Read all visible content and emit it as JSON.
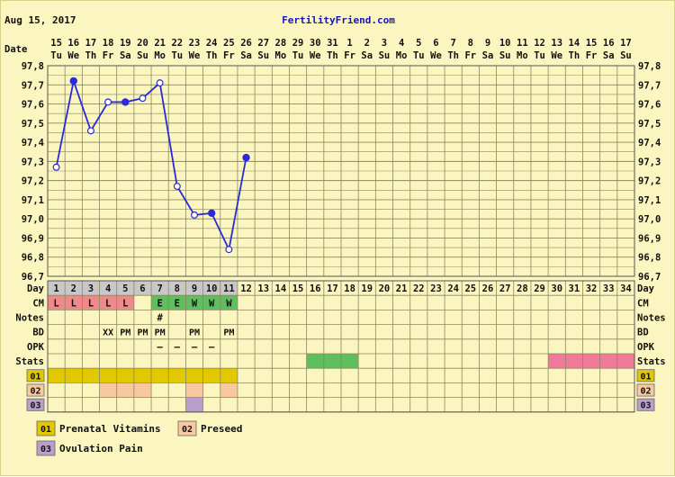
{
  "header": {
    "date": "Aug 15, 2017",
    "site": "FertilityFriend.com"
  },
  "row_labels": {
    "date": "Date",
    "day": "Day",
    "cm": "CM",
    "notes": "Notes",
    "bd": "BD",
    "opk": "OPK",
    "stats": "Stats"
  },
  "chart_data": {
    "type": "line",
    "dates": [
      "15",
      "16",
      "17",
      "18",
      "19",
      "20",
      "21",
      "22",
      "23",
      "24",
      "25",
      "26",
      "27",
      "28",
      "29",
      "30",
      "31",
      "1",
      "2",
      "3",
      "4",
      "5",
      "6",
      "7",
      "8",
      "9",
      "10",
      "11",
      "12",
      "13",
      "14",
      "15",
      "16",
      "17"
    ],
    "weekdays": [
      "Tu",
      "We",
      "Th",
      "Fr",
      "Sa",
      "Su",
      "Mo",
      "Tu",
      "We",
      "Th",
      "Fr",
      "Sa",
      "Su",
      "Mo",
      "Tu",
      "We",
      "Th",
      "Fr",
      "Sa",
      "Su",
      "Mo",
      "Tu",
      "We",
      "Th",
      "Fr",
      "Sa",
      "Su",
      "Mo",
      "Tu",
      "We",
      "Th",
      "Fr",
      "Sa",
      "Su"
    ],
    "days": [
      "1",
      "2",
      "3",
      "4",
      "5",
      "6",
      "7",
      "8",
      "9",
      "10",
      "11",
      "12",
      "13",
      "14",
      "15",
      "16",
      "17",
      "18",
      "19",
      "20",
      "21",
      "22",
      "23",
      "24",
      "25",
      "26",
      "27",
      "28",
      "29",
      "30",
      "31",
      "32",
      "33",
      "34"
    ],
    "ylim": [
      96.7,
      97.8
    ],
    "yticks": [
      "97,8",
      "97,7",
      "97,6",
      "97,5",
      "97,4",
      "97,3",
      "97,2",
      "97,1",
      "97,0",
      "96,9",
      "96,8",
      "96,7"
    ],
    "series": [
      {
        "day": [
          1,
          2,
          3,
          4,
          5,
          6,
          7,
          8,
          9,
          10,
          11,
          12
        ],
        "temp": [
          97.27,
          97.72,
          97.46,
          97.61,
          97.61,
          97.63,
          97.71,
          97.17,
          97.02,
          97.03,
          96.84,
          97.32
        ],
        "marker": [
          "open",
          "filled",
          "open",
          "open",
          "filled",
          "open",
          "open",
          "open",
          "open",
          "filled",
          "open",
          "filled"
        ],
        "color": "#2a2ad8"
      }
    ],
    "cm": [
      "L",
      "L",
      "L",
      "L",
      "L",
      "",
      "E",
      "E",
      "W",
      "W",
      "W",
      "",
      "",
      "",
      "",
      "",
      "",
      "",
      "",
      "",
      "",
      "",
      "",
      "",
      "",
      "",
      "",
      "",
      "",
      "",
      "",
      "",
      "",
      ""
    ],
    "cm_colors": {
      "L": "#f08a8a",
      "E": "#5fbf5f",
      "W": "#5fbf5f"
    },
    "notes": [
      "",
      "",
      "",
      "",
      "",
      "",
      "#",
      "",
      "",
      "",
      "",
      "",
      "",
      "",
      "",
      "",
      "",
      "",
      "",
      "",
      "",
      "",
      "",
      "",
      "",
      "",
      "",
      "",
      "",
      "",
      "",
      "",
      "",
      ""
    ],
    "bd": [
      "",
      "",
      "",
      "XX",
      "PM",
      "PM",
      "PM",
      "",
      "PM",
      "",
      "PM",
      "",
      "",
      "",
      "",
      "",
      "",
      "",
      "",
      "",
      "",
      "",
      "",
      "",
      "",
      "",
      "",
      "",
      "",
      "",
      "",
      "",
      "",
      ""
    ],
    "opk": [
      "",
      "",
      "",
      "",
      "",
      "",
      "–",
      "–",
      "–",
      "–",
      "",
      "",
      "",
      "",
      "",
      "",
      "",
      "",
      "",
      "",
      "",
      "",
      "",
      "",
      "",
      "",
      "",
      "",
      "",
      "",
      "",
      "",
      "",
      ""
    ],
    "stats_green_days": [
      16,
      17,
      18
    ],
    "stats_pink_days": [
      30,
      31,
      32,
      33,
      34
    ],
    "custom_rows": [
      {
        "code": "01",
        "color": "#e2c800",
        "days": [
          1,
          2,
          3,
          4,
          5,
          6,
          7,
          8,
          9,
          10,
          11
        ]
      },
      {
        "code": "02",
        "color": "#f8c9a0",
        "days": [
          4,
          5,
          6,
          9,
          11
        ]
      },
      {
        "code": "03",
        "color": "#b9a0cc",
        "days": [
          9
        ]
      }
    ]
  },
  "legend": [
    {
      "code": "01",
      "label": "Prenatal Vitamins",
      "color": "#e2c800"
    },
    {
      "code": "02",
      "label": "Preseed",
      "color": "#f8c9a0"
    },
    {
      "code": "03",
      "label": "Ovulation Pain",
      "color": "#b9a0cc"
    }
  ]
}
